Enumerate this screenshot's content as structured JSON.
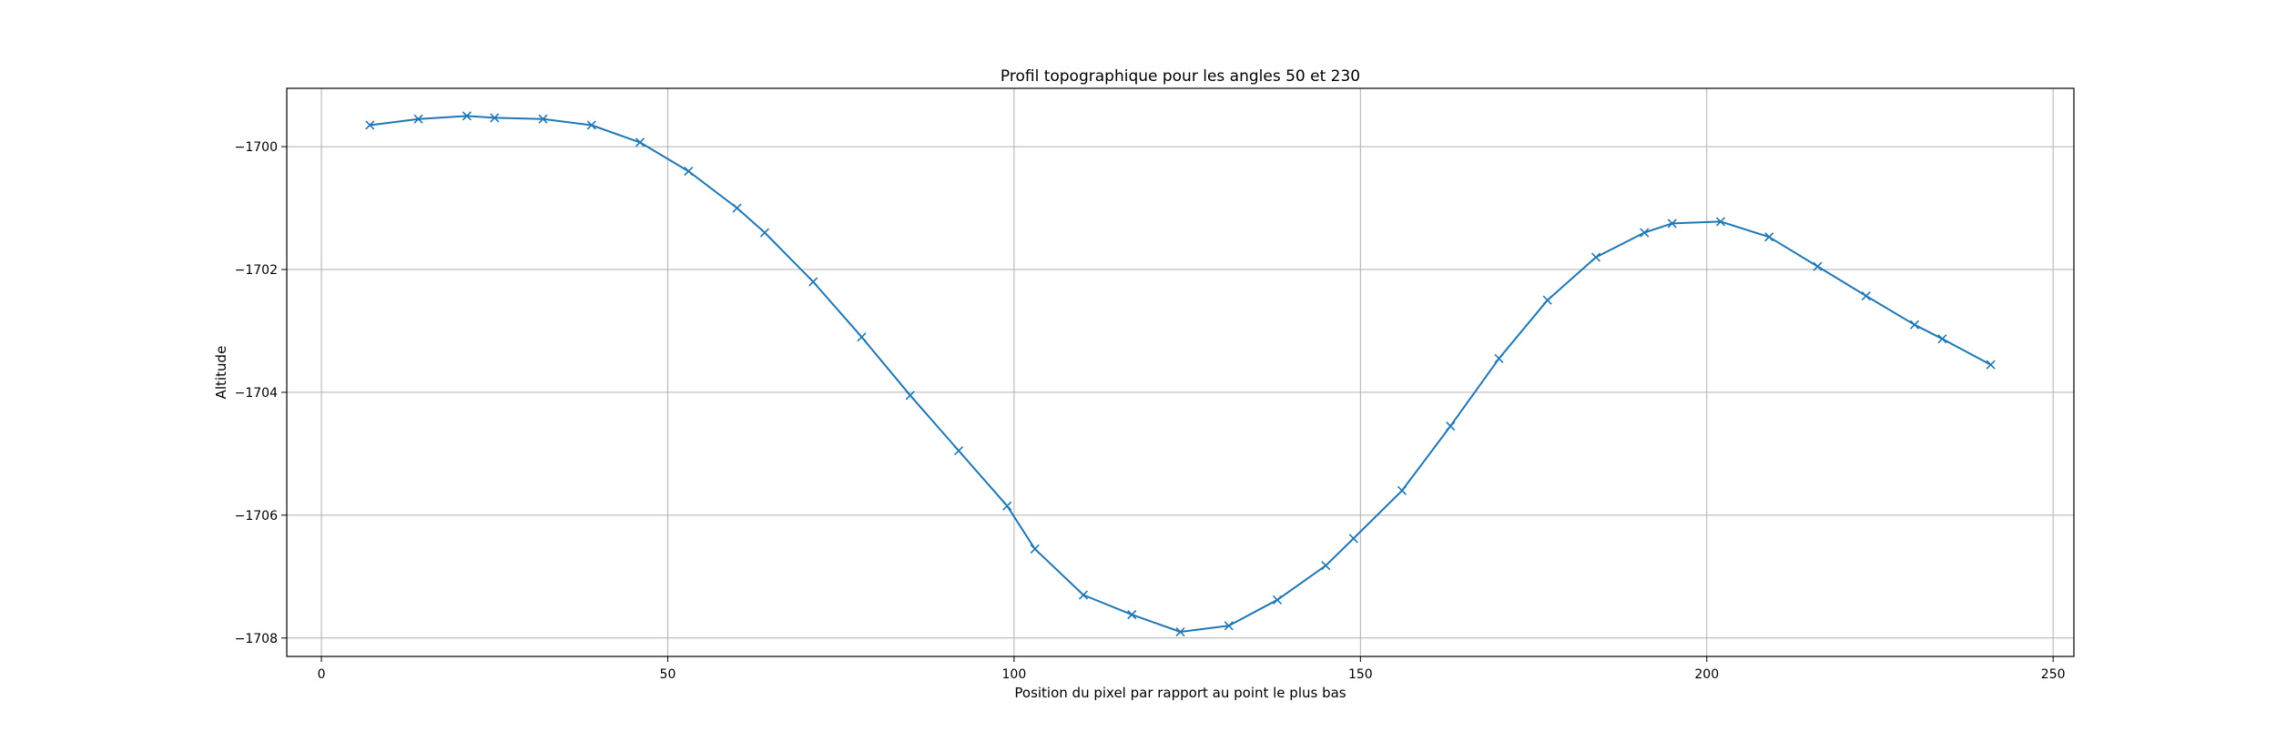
{
  "chart_data": {
    "type": "line",
    "title": "Profil topographique pour les angles 50 et 230",
    "xlabel": "Position du pixel par rapport au point le plus bas",
    "ylabel": "Altitude",
    "xlim": [
      -5,
      253
    ],
    "ylim": [
      -1708.3,
      -1699.05
    ],
    "xticks": [
      0,
      50,
      100,
      150,
      200,
      250
    ],
    "yticks": [
      -1708,
      -1706,
      -1704,
      -1702,
      -1700
    ],
    "xtick_labels": [
      "0",
      "50",
      "100",
      "150",
      "200",
      "250"
    ],
    "ytick_labels": [
      "−1708",
      "−1706",
      "−1704",
      "−1702",
      "−1700"
    ],
    "grid": true,
    "marker": "x",
    "color": "#1f77b4",
    "series": [
      {
        "x": [
          7,
          14,
          21,
          25,
          32,
          39,
          46,
          53,
          60,
          64,
          71,
          78,
          85,
          92,
          99,
          103,
          110,
          117,
          124,
          131,
          138,
          145,
          149,
          156,
          163,
          170,
          177,
          184,
          191,
          195,
          202,
          209,
          216,
          223,
          230,
          234,
          241
        ],
        "y": [
          -1699.65,
          -1699.55,
          -1699.5,
          -1699.53,
          -1699.55,
          -1699.65,
          -1699.93,
          -1700.4,
          -1701.0,
          -1701.4,
          -1702.2,
          -1703.1,
          -1704.05,
          -1704.95,
          -1705.85,
          -1706.55,
          -1707.3,
          -1707.62,
          -1707.9,
          -1707.8,
          -1707.38,
          -1706.82,
          -1706.38,
          -1705.6,
          -1704.55,
          -1703.45,
          -1702.5,
          -1701.8,
          -1701.4,
          -1701.25,
          -1701.22,
          -1701.47,
          -1701.95,
          -1702.43,
          -1702.9,
          -1703.13,
          -1703.55
        ]
      }
    ]
  }
}
